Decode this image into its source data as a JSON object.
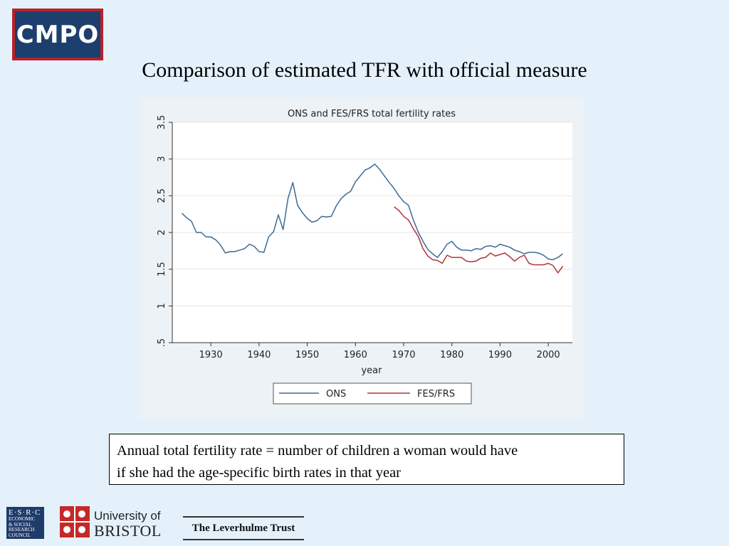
{
  "logo": {
    "text": "CMPO"
  },
  "slide": {
    "title": "Comparison of estimated TFR with official measure"
  },
  "note": {
    "line1": "Annual total fertility rate = number of children a woman would have",
    "line2": "if she had the age-specific birth rates in that year"
  },
  "footer": {
    "esrc_abbrev": "E·S·R·C",
    "esrc_lines": [
      "ECONOMIC",
      "& SOCIAL",
      "RESEARCH",
      "COUNCIL"
    ],
    "university_line1": "University of",
    "university_line2": "BRISTOL",
    "trust": "The Leverhulme Trust"
  },
  "colors": {
    "ons": "#3d6a96",
    "fes": "#b0353a",
    "plot_bg": "#ffffff",
    "panel_bg": "#ecf2f6"
  },
  "chart_data": {
    "type": "line",
    "title": "ONS and FES/FRS total fertility rates",
    "xlabel": "year",
    "ylabel": "",
    "xlim": [
      1922,
      2005
    ],
    "ylim": [
      0.5,
      3.5
    ],
    "xticks": [
      1930,
      1940,
      1950,
      1960,
      1970,
      1980,
      1990,
      2000
    ],
    "yticks": [
      0.5,
      1,
      1.5,
      2,
      2.5,
      3,
      3.5
    ],
    "ytick_labels": [
      ".5",
      "1",
      "1.5",
      "2",
      "2.5",
      "3",
      "3.5"
    ],
    "grid": true,
    "legend_position": "bottom",
    "series": [
      {
        "name": "ONS",
        "x": [
          1924,
          1925,
          1926,
          1927,
          1928,
          1929,
          1930,
          1931,
          1932,
          1933,
          1934,
          1935,
          1936,
          1937,
          1938,
          1939,
          1940,
          1941,
          1942,
          1943,
          1944,
          1945,
          1946,
          1947,
          1948,
          1949,
          1950,
          1951,
          1952,
          1953,
          1954,
          1955,
          1956,
          1957,
          1958,
          1959,
          1960,
          1961,
          1962,
          1963,
          1964,
          1965,
          1966,
          1967,
          1968,
          1969,
          1970,
          1971,
          1972,
          1973,
          1974,
          1975,
          1976,
          1977,
          1978,
          1979,
          1980,
          1981,
          1982,
          1983,
          1984,
          1985,
          1986,
          1987,
          1988,
          1989,
          1990,
          1991,
          1992,
          1993,
          1994,
          1995,
          1996,
          1997,
          1998,
          1999,
          2000,
          2001,
          2002,
          2003
        ],
        "y": [
          2.26,
          2.2,
          2.15,
          2.0,
          2.0,
          1.94,
          1.94,
          1.9,
          1.83,
          1.72,
          1.74,
          1.74,
          1.76,
          1.78,
          1.84,
          1.81,
          1.74,
          1.73,
          1.94,
          2.01,
          2.24,
          2.04,
          2.46,
          2.68,
          2.37,
          2.27,
          2.19,
          2.14,
          2.16,
          2.22,
          2.21,
          2.22,
          2.36,
          2.46,
          2.52,
          2.56,
          2.69,
          2.77,
          2.85,
          2.88,
          2.93,
          2.86,
          2.77,
          2.68,
          2.6,
          2.5,
          2.42,
          2.37,
          2.17,
          2.01,
          1.88,
          1.77,
          1.71,
          1.66,
          1.74,
          1.84,
          1.88,
          1.8,
          1.76,
          1.76,
          1.75,
          1.78,
          1.77,
          1.81,
          1.82,
          1.8,
          1.84,
          1.82,
          1.8,
          1.76,
          1.74,
          1.71,
          1.73,
          1.73,
          1.72,
          1.69,
          1.64,
          1.63,
          1.66,
          1.71
        ]
      },
      {
        "name": "FES/FRS",
        "x": [
          1968,
          1969,
          1970,
          1971,
          1972,
          1973,
          1974,
          1975,
          1976,
          1977,
          1978,
          1979,
          1980,
          1981,
          1982,
          1983,
          1984,
          1985,
          1986,
          1987,
          1988,
          1989,
          1990,
          1991,
          1992,
          1993,
          1994,
          1995,
          1996,
          1997,
          1998,
          1999,
          2000,
          2001,
          2002,
          2003
        ],
        "y": [
          2.35,
          2.3,
          2.22,
          2.17,
          2.05,
          1.95,
          1.78,
          1.68,
          1.63,
          1.62,
          1.58,
          1.69,
          1.66,
          1.66,
          1.66,
          1.61,
          1.6,
          1.61,
          1.65,
          1.66,
          1.72,
          1.68,
          1.7,
          1.72,
          1.67,
          1.61,
          1.66,
          1.69,
          1.58,
          1.56,
          1.56,
          1.56,
          1.58,
          1.55,
          1.45,
          1.54
        ]
      }
    ]
  }
}
